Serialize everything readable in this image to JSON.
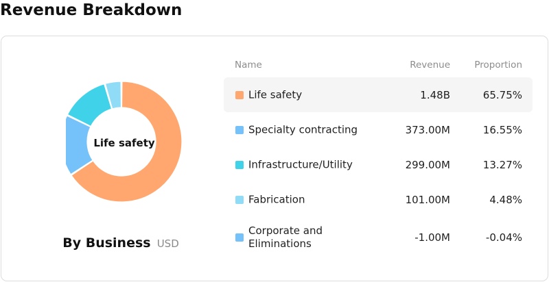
{
  "page": {
    "title": "Revenue Breakdown"
  },
  "summary": {
    "label": "By Business",
    "unit": "USD"
  },
  "table": {
    "headers": {
      "name": "Name",
      "revenue": "Revenue",
      "proportion": "Proportion"
    },
    "selected_index": 0
  },
  "chart_data": {
    "type": "pie",
    "variant": "donut",
    "center_label": "Life safety",
    "slices": [
      {
        "name": "Life safety",
        "value_label": "1.48B",
        "proportion_label": "65.75%",
        "proportion": 65.75,
        "color": "#FFA76E"
      },
      {
        "name": "Specialty contracting",
        "value_label": "373.00M",
        "proportion_label": "16.55%",
        "proportion": 16.55,
        "color": "#75C2FA"
      },
      {
        "name": "Infrastructure/Utility",
        "value_label": "299.00M",
        "proportion_label": "13.27%",
        "proportion": 13.27,
        "color": "#3FD2E8"
      },
      {
        "name": "Fabrication",
        "value_label": "101.00M",
        "proportion_label": "4.48%",
        "proportion": 4.48,
        "color": "#90DCF7"
      },
      {
        "name": "Corporate and Eliminations",
        "value_label": "-1.00M",
        "proportion_label": "-0.04%",
        "proportion": -0.04,
        "color": "#75C2FA"
      }
    ]
  }
}
